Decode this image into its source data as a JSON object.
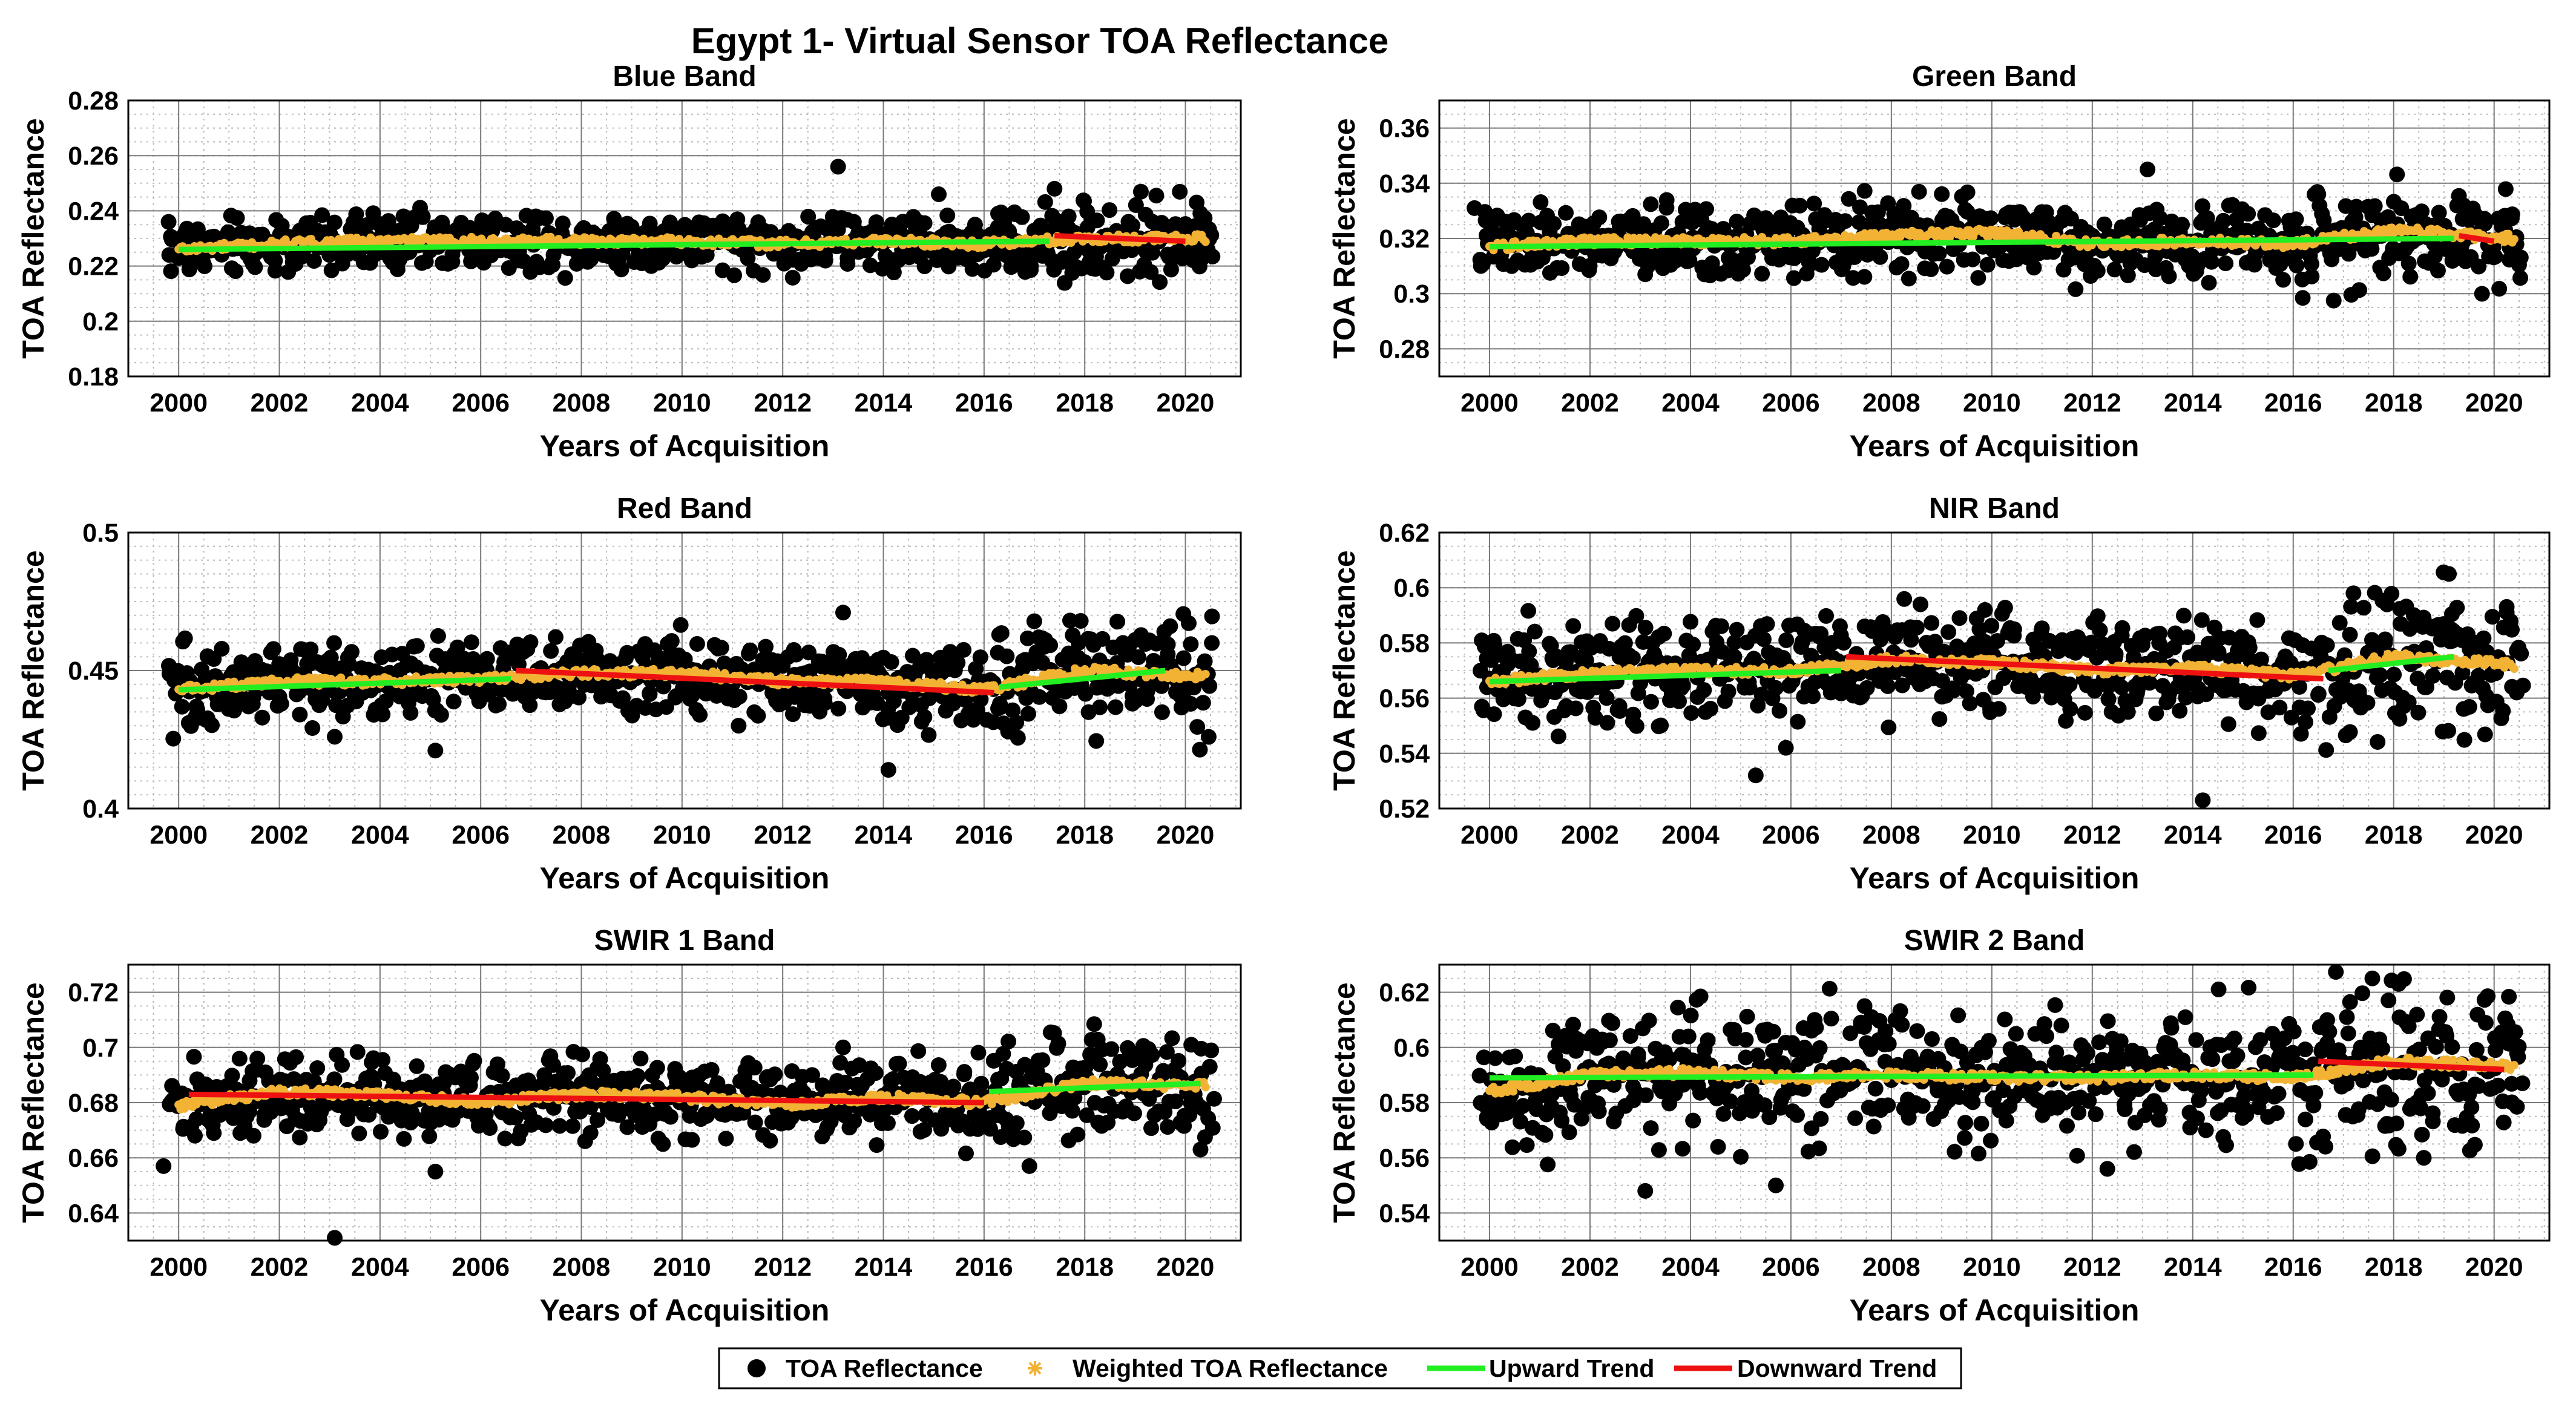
{
  "figure": {
    "title": "Egypt 1- Virtual Sensor TOA Reflectance",
    "xlabel": "Years of Acquisition",
    "ylabel": "TOA Reflectance"
  },
  "legend": {
    "items": [
      {
        "label": "TOA Reflectance",
        "marker": "dot",
        "color": "#000000"
      },
      {
        "label": "Weighted TOA Reflectance",
        "marker": "asterisk",
        "color": "#F2B233"
      },
      {
        "label": "Upward Trend",
        "marker": "line",
        "color": "#22EE22"
      },
      {
        "label": "Downward Trend",
        "marker": "line",
        "color": "#EE1111"
      }
    ]
  },
  "colors": {
    "points": "#000000",
    "weighted": "#F2B233",
    "upward": "#22EE22",
    "downward": "#EE1111",
    "grid_major": "#7a7a7a",
    "grid_minor": "#b8b8b8"
  },
  "chart_data": [
    {
      "type": "scatter",
      "title": "Blue Band",
      "xlabel": "Years of Acquisition",
      "ylabel": "TOA Reflectance",
      "xlim": [
        1999.0,
        2021.1
      ],
      "ylim": [
        0.18,
        0.28
      ],
      "xticks": [
        2000,
        2002,
        2004,
        2006,
        2008,
        2010,
        2012,
        2014,
        2016,
        2018,
        2020
      ],
      "yticks": [
        0.18,
        0.2,
        0.22,
        0.24,
        0.26,
        0.28
      ],
      "ytick_labels": [
        "0.18",
        "0.2",
        "0.22",
        "0.24",
        "0.26",
        "0.28"
      ],
      "scatter_spread": 0.005,
      "weighted_series": {
        "x": [
          2000.0,
          2002,
          2004,
          2006,
          2008,
          2010,
          2012,
          2014,
          2016,
          2018,
          2020.4
        ],
        "y": [
          0.226,
          0.228,
          0.229,
          0.229,
          0.229,
          0.229,
          0.228,
          0.229,
          0.228,
          0.23,
          0.23
        ]
      },
      "outliers": [
        {
          "x": 1999.8,
          "y": 0.236
        },
        {
          "x": 2013.1,
          "y": 0.256
        },
        {
          "x": 2017.4,
          "y": 0.248
        },
        {
          "x": 2015.1,
          "y": 0.246
        },
        {
          "x": 2009.2,
          "y": 0.221
        }
      ],
      "trends": [
        {
          "direction": "up",
          "x": [
            2000.0,
            2017.3
          ],
          "y": [
            0.226,
            0.229
          ]
        },
        {
          "direction": "down",
          "x": [
            2017.4,
            2020.0
          ],
          "y": [
            0.231,
            0.229
          ]
        }
      ]
    },
    {
      "type": "scatter",
      "title": "Green Band",
      "xlabel": "Years of Acquisition",
      "ylabel": "TOA Reflectance",
      "xlim": [
        1999.0,
        2021.1
      ],
      "ylim": [
        0.27,
        0.37
      ],
      "xticks": [
        2000,
        2002,
        2004,
        2006,
        2008,
        2010,
        2012,
        2014,
        2016,
        2018,
        2020
      ],
      "yticks": [
        0.28,
        0.3,
        0.32,
        0.34,
        0.36
      ],
      "ytick_labels": [
        "0.28",
        "0.3",
        "0.32",
        "0.34",
        "0.36"
      ],
      "scatter_spread": 0.006,
      "weighted_series": {
        "x": [
          2000.0,
          2002,
          2004,
          2006,
          2008,
          2010,
          2012,
          2014,
          2016,
          2018,
          2020.4
        ],
        "y": [
          0.317,
          0.319,
          0.319,
          0.319,
          0.321,
          0.322,
          0.318,
          0.319,
          0.318,
          0.323,
          0.32
        ]
      },
      "outliers": [
        {
          "x": 1999.7,
          "y": 0.331
        },
        {
          "x": 2013.1,
          "y": 0.345
        },
        {
          "x": 2016.5,
          "y": 0.336
        },
        {
          "x": 2003.1,
          "y": 0.307
        },
        {
          "x": 2015.8,
          "y": 0.305
        }
      ],
      "trends": [
        {
          "direction": "up",
          "x": [
            2000.0,
            2019.2
          ],
          "y": [
            0.317,
            0.32
          ]
        },
        {
          "direction": "down",
          "x": [
            2019.3,
            2020.0
          ],
          "y": [
            0.321,
            0.319
          ]
        }
      ]
    },
    {
      "type": "scatter",
      "title": "Red Band",
      "xlabel": "Years of Acquisition",
      "ylabel": "TOA Reflectance",
      "xlim": [
        1999.0,
        2021.1
      ],
      "ylim": [
        0.4,
        0.5
      ],
      "xticks": [
        2000,
        2002,
        2004,
        2006,
        2008,
        2010,
        2012,
        2014,
        2016,
        2018,
        2020
      ],
      "yticks": [
        0.4,
        0.45,
        0.5
      ],
      "ytick_labels": [
        "0.4",
        "0.45",
        "0.5"
      ],
      "scatter_spread": 0.007,
      "weighted_series": {
        "x": [
          2000.0,
          2002,
          2004,
          2006,
          2008,
          2010,
          2012,
          2014,
          2016,
          2018,
          2020.4
        ],
        "y": [
          0.443,
          0.446,
          0.446,
          0.447,
          0.449,
          0.449,
          0.446,
          0.446,
          0.443,
          0.45,
          0.448
        ]
      },
      "outliers": [
        {
          "x": 2013.2,
          "y": 0.471
        },
        {
          "x": 2014.1,
          "y": 0.414
        },
        {
          "x": 2005.1,
          "y": 0.421
        },
        {
          "x": 2003.1,
          "y": 0.426
        },
        {
          "x": 2000.2,
          "y": 0.431
        },
        {
          "x": 2016.3,
          "y": 0.463
        }
      ],
      "trends": [
        {
          "direction": "up",
          "x": [
            2000.0,
            2006.6
          ],
          "y": [
            0.443,
            0.447
          ]
        },
        {
          "direction": "down",
          "x": [
            2006.7,
            2016.2
          ],
          "y": [
            0.45,
            0.442
          ]
        },
        {
          "direction": "up",
          "x": [
            2016.3,
            2019.6
          ],
          "y": [
            0.444,
            0.45
          ]
        }
      ]
    },
    {
      "type": "scatter",
      "title": "NIR Band",
      "xlabel": "Years of Acquisition",
      "ylabel": "TOA Reflectance",
      "xlim": [
        1999.0,
        2021.1
      ],
      "ylim": [
        0.52,
        0.62
      ],
      "xticks": [
        2000,
        2002,
        2004,
        2006,
        2008,
        2010,
        2012,
        2014,
        2016,
        2018,
        2020
      ],
      "yticks": [
        0.52,
        0.54,
        0.56,
        0.58,
        0.6,
        0.62
      ],
      "ytick_labels": [
        "0.52",
        "0.54",
        "0.56",
        "0.58",
        "0.6",
        "0.62"
      ],
      "scatter_spread": 0.009,
      "weighted_series": {
        "x": [
          2000.0,
          2002,
          2004,
          2006,
          2008,
          2010,
          2012,
          2014,
          2016,
          2018,
          2020.4
        ],
        "y": [
          0.566,
          0.569,
          0.57,
          0.57,
          0.574,
          0.573,
          0.57,
          0.571,
          0.568,
          0.575,
          0.572
        ]
      },
      "outliers": [
        {
          "x": 2014.2,
          "y": 0.523
        },
        {
          "x": 2005.3,
          "y": 0.532
        },
        {
          "x": 2005.9,
          "y": 0.542
        },
        {
          "x": 2019.1,
          "y": 0.605
        },
        {
          "x": 2017.2,
          "y": 0.598
        }
      ],
      "trends": [
        {
          "direction": "up",
          "x": [
            2000.0,
            2007.0
          ],
          "y": [
            0.566,
            0.57
          ]
        },
        {
          "direction": "down",
          "x": [
            2007.1,
            2016.6
          ],
          "y": [
            0.575,
            0.567
          ]
        },
        {
          "direction": "up",
          "x": [
            2016.7,
            2019.2
          ],
          "y": [
            0.57,
            0.575
          ]
        }
      ]
    },
    {
      "type": "scatter",
      "title": "SWIR 1 Band",
      "xlabel": "Years of Acquisition",
      "ylabel": "TOA Reflectance",
      "xlim": [
        1999.0,
        2021.1
      ],
      "ylim": [
        0.63,
        0.73
      ],
      "xticks": [
        2000,
        2002,
        2004,
        2006,
        2008,
        2010,
        2012,
        2014,
        2016,
        2018,
        2020
      ],
      "yticks": [
        0.64,
        0.66,
        0.68,
        0.7,
        0.72
      ],
      "ytick_labels": [
        "0.64",
        "0.66",
        "0.68",
        "0.7",
        "0.72"
      ],
      "scatter_spread": 0.007,
      "weighted_series": {
        "x": [
          2000.0,
          2002,
          2004,
          2006,
          2008,
          2010,
          2012,
          2014,
          2016,
          2018,
          2020.4
        ],
        "y": [
          0.679,
          0.684,
          0.683,
          0.68,
          0.683,
          0.682,
          0.679,
          0.682,
          0.68,
          0.687,
          0.686
        ]
      },
      "outliers": [
        {
          "x": 2003.1,
          "y": 0.631
        },
        {
          "x": 1999.7,
          "y": 0.657
        },
        {
          "x": 2005.1,
          "y": 0.655
        },
        {
          "x": 2016.9,
          "y": 0.657
        },
        {
          "x": 2020.3,
          "y": 0.663
        },
        {
          "x": 2013.2,
          "y": 0.7
        }
      ],
      "trends": [
        {
          "direction": "down",
          "x": [
            2000.2,
            2016.0
          ],
          "y": [
            0.683,
            0.68
          ]
        },
        {
          "direction": "up",
          "x": [
            2016.1,
            2020.3
          ],
          "y": [
            0.684,
            0.687
          ]
        }
      ]
    },
    {
      "type": "scatter",
      "title": "SWIR 2 Band",
      "xlabel": "Years of Acquisition",
      "ylabel": "TOA Reflectance",
      "xlim": [
        1999.0,
        2021.1
      ],
      "ylim": [
        0.53,
        0.63
      ],
      "xticks": [
        2000,
        2002,
        2004,
        2006,
        2008,
        2010,
        2012,
        2014,
        2016,
        2018,
        2020
      ],
      "yticks": [
        0.54,
        0.56,
        0.58,
        0.6,
        0.62
      ],
      "ytick_labels": [
        "0.54",
        "0.56",
        "0.58",
        "0.6",
        "0.62"
      ],
      "scatter_spread": 0.012,
      "weighted_series": {
        "x": [
          2000.0,
          2002,
          2004,
          2006,
          2008,
          2010,
          2012,
          2014,
          2016,
          2018,
          2020.4
        ],
        "y": [
          0.584,
          0.59,
          0.591,
          0.589,
          0.59,
          0.589,
          0.589,
          0.59,
          0.589,
          0.595,
          0.593
        ]
      },
      "outliers": [
        {
          "x": 2003.1,
          "y": 0.548
        },
        {
          "x": 2005.7,
          "y": 0.55
        },
        {
          "x": 2018.1,
          "y": 0.623
        },
        {
          "x": 2018.6,
          "y": 0.56
        },
        {
          "x": 2012.3,
          "y": 0.556
        }
      ],
      "trends": [
        {
          "direction": "up",
          "x": [
            2000.0,
            2016.4
          ],
          "y": [
            0.589,
            0.59
          ]
        },
        {
          "direction": "down",
          "x": [
            2016.5,
            2020.2
          ],
          "y": [
            0.595,
            0.592
          ]
        }
      ]
    }
  ]
}
